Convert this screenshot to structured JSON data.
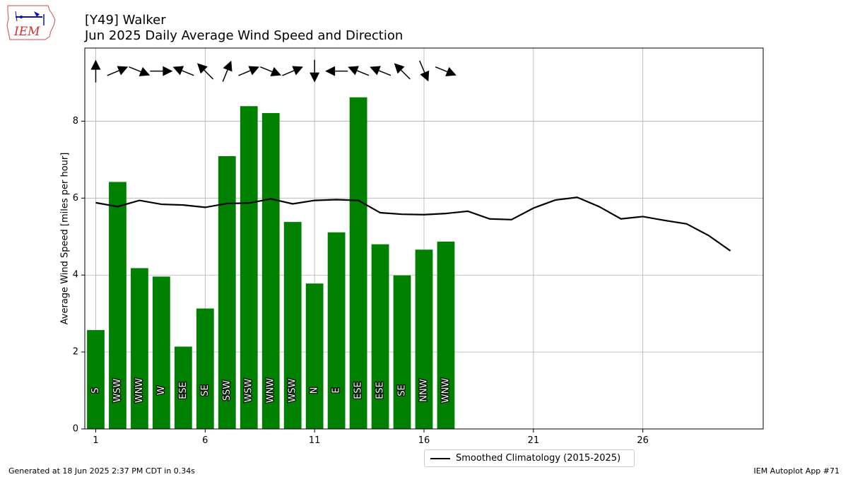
{
  "header": {
    "title_line1": "[Y49] Walker",
    "title_line2": "Jun 2025 Daily Average Wind Speed and Direction"
  },
  "logo": {
    "text": "IEM",
    "icon": "iem-iowa-logo"
  },
  "footer": {
    "left": "Generated at 18 Jun 2025 2:37 PM CDT in 0.34s",
    "right": "IEM Autoplot App #71"
  },
  "legend": {
    "label": "Smoothed Climatology (2015-2025)"
  },
  "colors": {
    "bar": "#008000",
    "line": "#000000",
    "grid": "#b0b0b0"
  },
  "chart_data": {
    "type": "bar",
    "ylabel": "Average Wind Speed [miles per hour]",
    "xlabel": "",
    "xlim": [
      0.5,
      31.5
    ],
    "ylim": [
      0,
      9.9
    ],
    "xticks": [
      1,
      6,
      11,
      16,
      21,
      26
    ],
    "yticks": [
      0,
      2,
      4,
      6,
      8
    ],
    "grid": true,
    "legend_position": "bottom-center",
    "days": [
      1,
      2,
      3,
      4,
      5,
      6,
      7,
      8,
      9,
      10,
      11,
      12,
      13,
      14,
      15,
      16,
      17
    ],
    "values": [
      2.57,
      6.42,
      4.18,
      3.96,
      2.14,
      3.13,
      7.09,
      8.39,
      8.21,
      5.38,
      3.78,
      5.11,
      8.62,
      4.8,
      3.99,
      4.66,
      4.87
    ],
    "directions": [
      "S",
      "WSW",
      "WNW",
      "W",
      "ESE",
      "SE",
      "SSW",
      "WSW",
      "WNW",
      "WSW",
      "N",
      "E",
      "ESE",
      "ESE",
      "SE",
      "NNW",
      "WNW"
    ],
    "arrow_degrees": [
      180,
      247,
      292,
      270,
      112,
      135,
      202,
      247,
      292,
      247,
      0,
      90,
      112,
      112,
      135,
      337,
      292
    ],
    "series": [
      {
        "name": "Smoothed Climatology (2015-2025)",
        "type": "line",
        "x": [
          1,
          2,
          3,
          4,
          5,
          6,
          7,
          8,
          9,
          10,
          11,
          12,
          13,
          14,
          15,
          16,
          17,
          18,
          19,
          20,
          21,
          22,
          23,
          24,
          25,
          26,
          27,
          28,
          29,
          30
        ],
        "values": [
          5.88,
          5.78,
          5.94,
          5.84,
          5.82,
          5.76,
          5.86,
          5.87,
          5.98,
          5.85,
          5.94,
          5.96,
          5.94,
          5.62,
          5.58,
          5.57,
          5.6,
          5.66,
          5.46,
          5.44,
          5.74,
          5.95,
          6.02,
          5.78,
          5.46,
          5.52,
          5.42,
          5.33,
          5.03,
          4.63
        ]
      }
    ]
  }
}
